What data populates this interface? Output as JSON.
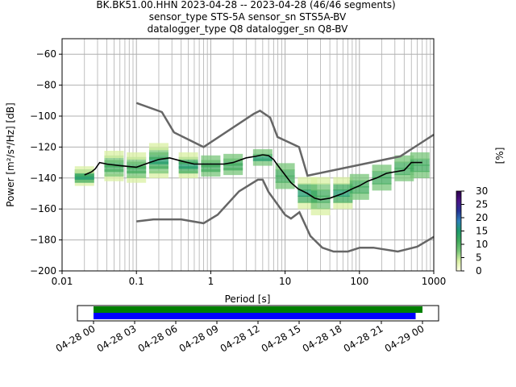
{
  "header": {
    "title_lines": [
      "BK.BK51.00.HHN   2023-04-28 -- 2023-04-28  (46/46 segments)",
      "sensor_type STS-5A sensor_sn STS5A-BV",
      "datalogger_type Q8 datalogger_sn Q8-BV"
    ]
  },
  "colors": {
    "mean_line": "#000000",
    "noise_model": "#666666",
    "coverage_green": "#008000",
    "coverage_blue": "#0000ff",
    "grid": "#b0b0b0"
  },
  "colormap": [
    "#ffffe5",
    "#d9f0a3",
    "#78c679",
    "#41ab5d",
    "#1d9a6c",
    "#2c7fb8",
    "#253494",
    "#4a1486",
    "#2d004b"
  ],
  "chart_data": [
    {
      "type": "heatmap",
      "xlabel": "Period [s]",
      "ylabel": "Power [m²/s⁴/Hz] [dB]",
      "x_scale": "log",
      "xlim": [
        0.01,
        1000
      ],
      "ylim": [
        -200,
        -50
      ],
      "x_ticks": [
        0.01,
        0.1,
        1,
        10,
        100,
        1000
      ],
      "x_tick_labels": [
        "0.01",
        "0.1",
        "1",
        "10",
        "100",
        "1000"
      ],
      "y_ticks": [
        -200,
        -180,
        -160,
        -140,
        -120,
        -100,
        -80,
        -60
      ],
      "y_tick_labels": [
        "−200",
        "−180",
        "−160",
        "−140",
        "−120",
        "−100",
        "−80",
        "−60"
      ],
      "grid": true,
      "colorbar": {
        "label": "[%]",
        "range": [
          0,
          30
        ],
        "ticks": [
          0,
          5,
          10,
          15,
          20,
          25,
          30
        ],
        "tick_labels": [
          "0",
          "5",
          "10",
          "15",
          "20",
          "25",
          "30"
        ]
      },
      "mean_curve": [
        [
          0.02,
          -138
        ],
        [
          0.025,
          -136
        ],
        [
          0.028,
          -134
        ],
        [
          0.032,
          -130
        ],
        [
          0.04,
          -131
        ],
        [
          0.06,
          -132
        ],
        [
          0.1,
          -133
        ],
        [
          0.15,
          -130
        ],
        [
          0.2,
          -128
        ],
        [
          0.28,
          -127
        ],
        [
          0.4,
          -129
        ],
        [
          0.6,
          -131
        ],
        [
          1,
          -131
        ],
        [
          1.5,
          -131
        ],
        [
          2,
          -130
        ],
        [
          3,
          -127
        ],
        [
          4,
          -126
        ],
        [
          5,
          -125
        ],
        [
          6,
          -125.5
        ],
        [
          7,
          -128
        ],
        [
          8,
          -132
        ],
        [
          10,
          -138
        ],
        [
          12,
          -143
        ],
        [
          15,
          -147
        ],
        [
          20,
          -150
        ],
        [
          25,
          -153
        ],
        [
          30,
          -154
        ],
        [
          40,
          -153
        ],
        [
          60,
          -150
        ],
        [
          80,
          -147
        ],
        [
          100,
          -145
        ],
        [
          130,
          -142
        ],
        [
          170,
          -140
        ],
        [
          230,
          -137
        ],
        [
          300,
          -136
        ],
        [
          400,
          -135
        ],
        [
          500,
          -130
        ],
        [
          700,
          -130
        ]
      ],
      "noise_models": {
        "high": [
          [
            0.1,
            -91.5
          ],
          [
            0.22,
            -97.4
          ],
          [
            0.32,
            -110.5
          ],
          [
            0.8,
            -120
          ],
          [
            3.8,
            -98.5
          ],
          [
            4.6,
            -96.5
          ],
          [
            6.3,
            -101
          ],
          [
            7.9,
            -113.5
          ],
          [
            15.4,
            -120
          ],
          [
            20,
            -138.5
          ],
          [
            354.8,
            -126
          ],
          [
            1000,
            -112
          ]
        ],
        "low": [
          [
            0.1,
            -168
          ],
          [
            0.17,
            -166.7
          ],
          [
            0.4,
            -166.7
          ],
          [
            0.8,
            -169.2
          ],
          [
            1.24,
            -163.7
          ],
          [
            2.4,
            -148.6
          ],
          [
            4.3,
            -141.1
          ],
          [
            5,
            -141.1
          ],
          [
            6,
            -149
          ],
          [
            10,
            -163.8
          ],
          [
            12,
            -166.2
          ],
          [
            15.6,
            -162.1
          ],
          [
            21.9,
            -177.5
          ],
          [
            31.6,
            -185
          ],
          [
            45,
            -187.5
          ],
          [
            70,
            -187.5
          ],
          [
            101,
            -185
          ],
          [
            154,
            -185
          ],
          [
            328,
            -187.5
          ],
          [
            600,
            -184.4
          ],
          [
            1000,
            -178
          ]
        ]
      },
      "psd_distribution": [
        {
          "period": 0.02,
          "values": [
            -143,
            -141,
            -139,
            -137,
            -135
          ]
        },
        {
          "period": 0.05,
          "values": [
            -140,
            -137,
            -134,
            -131,
            -128,
            -125
          ]
        },
        {
          "period": 0.1,
          "values": [
            -141,
            -138,
            -135,
            -132,
            -129,
            -126
          ]
        },
        {
          "period": 0.2,
          "values": [
            -138,
            -135,
            -132,
            -129,
            -126,
            -123,
            -120
          ]
        },
        {
          "period": 0.5,
          "values": [
            -138,
            -135,
            -132,
            -129,
            -126
          ]
        },
        {
          "period": 1,
          "values": [
            -137,
            -134,
            -131,
            -128
          ]
        },
        {
          "period": 2,
          "values": [
            -136,
            -133,
            -130,
            -127
          ]
        },
        {
          "period": 5,
          "values": [
            -130,
            -127,
            -124
          ]
        },
        {
          "period": 10,
          "values": [
            -145,
            -141,
            -137,
            -133
          ]
        },
        {
          "period": 20,
          "values": [
            -158,
            -154,
            -150,
            -146,
            -142
          ]
        },
        {
          "period": 30,
          "values": [
            -162,
            -158,
            -154,
            -150,
            -146,
            -142
          ]
        },
        {
          "period": 60,
          "values": [
            -158,
            -154,
            -150,
            -146,
            -142
          ]
        },
        {
          "period": 100,
          "values": [
            -152,
            -148,
            -144,
            -140
          ]
        },
        {
          "period": 200,
          "values": [
            -146,
            -142,
            -138,
            -134
          ]
        },
        {
          "period": 400,
          "values": [
            -140,
            -136,
            -132,
            -128
          ]
        },
        {
          "period": 650,
          "values": [
            -138,
            -134,
            -130,
            -126
          ]
        }
      ]
    },
    {
      "type": "bar",
      "xlabel": "",
      "x_range": [
        "04-28 00",
        "04-29 00"
      ],
      "x_tick_labels": [
        "04-28 00",
        "04-28 03",
        "04-28 06",
        "04-28 09",
        "04-28 12",
        "04-28 15",
        "04-28 18",
        "04-28 21",
        "04-29 00"
      ],
      "x_tick_hours": [
        0,
        3,
        6,
        9,
        12,
        15,
        18,
        21,
        24
      ],
      "series": [
        {
          "start_hour": 0,
          "end_hour": 24.0,
          "color": "#008000"
        },
        {
          "start_hour": 0,
          "end_hour": 23.5,
          "color": "#0000ff"
        }
      ]
    }
  ]
}
